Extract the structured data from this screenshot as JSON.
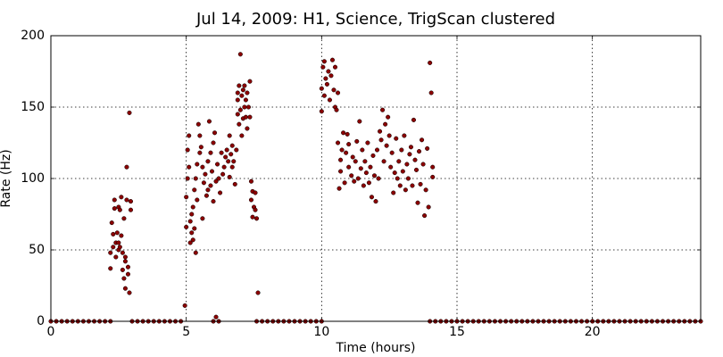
{
  "chart_data": {
    "type": "scatter",
    "title": "Jul 14, 2009: H1, Science, TrigScan clustered",
    "xlabel": "Time (hours)",
    "ylabel": "Rate (Hz)",
    "xlim": [
      0,
      24
    ],
    "ylim": [
      0,
      200
    ],
    "xticks": [
      0,
      5,
      10,
      15,
      20
    ],
    "yticks": [
      0,
      50,
      100,
      150,
      200
    ],
    "grid": true,
    "color": "#8b0000",
    "x": [
      2.2,
      2.2,
      2.25,
      2.3,
      2.3,
      2.35,
      2.35,
      2.4,
      2.4,
      2.45,
      2.5,
      2.5,
      2.55,
      2.6,
      2.6,
      2.65,
      2.65,
      2.7,
      2.7,
      2.75,
      2.75,
      2.8,
      2.8,
      2.85,
      2.85,
      2.9,
      2.9,
      2.95,
      2.95,
      2.75,
      2.55,
      2.5,
      4.95,
      5.0,
      5.0,
      5.05,
      5.05,
      5.1,
      5.1,
      5.15,
      5.15,
      5.2,
      5.2,
      5.25,
      5.25,
      5.3,
      5.3,
      5.35,
      5.35,
      5.4,
      5.4,
      5.45,
      5.5,
      5.5,
      5.55,
      5.6,
      5.6,
      5.65,
      5.7,
      5.75,
      5.8,
      5.8,
      5.85,
      5.9,
      5.9,
      5.95,
      6.0,
      6.0,
      6.05,
      6.1,
      6.1,
      6.15,
      6.2,
      6.25,
      6.3,
      6.35,
      6.4,
      6.45,
      6.5,
      6.55,
      6.6,
      6.6,
      6.65,
      6.7,
      6.7,
      6.75,
      6.8,
      6.85,
      6.9,
      6.9,
      6.9,
      6.95,
      6.95,
      7.0,
      7.0,
      7.05,
      7.05,
      7.1,
      7.1,
      7.15,
      7.15,
      7.2,
      7.2,
      7.25,
      7.25,
      7.3,
      7.35,
      7.35,
      7.4,
      7.4,
      7.45,
      7.45,
      7.5,
      7.55,
      7.55,
      7.6,
      7.65,
      10.0,
      10.0,
      10.05,
      10.1,
      10.1,
      10.15,
      10.2,
      10.25,
      10.3,
      10.35,
      10.4,
      10.45,
      10.5,
      10.5,
      10.55,
      10.6,
      10.6,
      10.65,
      10.7,
      10.7,
      10.75,
      10.8,
      10.85,
      10.9,
      10.95,
      11.0,
      11.0,
      11.1,
      11.15,
      11.2,
      11.25,
      11.3,
      11.35,
      11.4,
      11.45,
      11.5,
      11.55,
      11.6,
      11.65,
      11.7,
      11.75,
      11.8,
      11.85,
      11.9,
      11.95,
      12.0,
      12.05,
      12.1,
      12.15,
      12.2,
      12.25,
      12.3,
      12.35,
      12.4,
      12.45,
      12.5,
      12.55,
      12.6,
      12.65,
      12.7,
      12.75,
      12.8,
      12.85,
      12.9,
      12.95,
      13.0,
      13.05,
      13.1,
      13.15,
      13.2,
      13.25,
      13.3,
      13.35,
      13.4,
      13.45,
      13.5,
      13.55,
      13.6,
      13.65,
      13.7,
      13.75,
      13.8,
      13.85,
      13.9,
      13.95,
      14.0,
      14.05,
      14.1,
      14.1,
      0,
      0.2,
      0.4,
      0.6,
      0.8,
      1,
      1.2,
      1.4,
      1.6,
      1.8,
      2,
      2.2,
      3,
      3.2,
      3.4,
      3.6,
      3.8,
      4,
      4.2,
      4.4,
      4.6,
      4.8,
      6,
      6.2,
      7.6,
      7.8,
      8,
      8.2,
      8.4,
      8.6,
      8.8,
      9,
      9.2,
      9.4,
      9.6,
      9.8,
      10,
      14,
      14.2,
      14.4,
      14.6,
      14.8,
      15,
      15.2,
      15.4,
      15.6,
      15.8,
      16,
      16.2,
      16.4,
      16.6,
      16.8,
      17,
      17.2,
      17.4,
      17.6,
      17.8,
      18,
      18.2,
      18.4,
      18.6,
      18.8,
      19,
      19.2,
      19.4,
      19.6,
      19.8,
      20,
      20.2,
      20.4,
      20.6,
      20.8,
      21,
      21.2,
      21.4,
      21.6,
      21.8,
      22,
      22.2,
      22.4,
      22.6,
      22.8,
      23,
      23.2,
      23.4,
      23.6,
      23.8,
      24
    ],
    "values": [
      37,
      48,
      69,
      52,
      61,
      85,
      79,
      55,
      45,
      62,
      50,
      80,
      78,
      60,
      87,
      48,
      36,
      72,
      30,
      42,
      23,
      108,
      85,
      38,
      33,
      146,
      20,
      78,
      84,
      45,
      52,
      55,
      11,
      66,
      87,
      100,
      120,
      130,
      108,
      70,
      55,
      62,
      75,
      80,
      57,
      65,
      92,
      48,
      100,
      85,
      110,
      138,
      130,
      118,
      122,
      72,
      108,
      97,
      103,
      88,
      92,
      112,
      140,
      95,
      118,
      105,
      84,
      125,
      132,
      98,
      3,
      110,
      100,
      90,
      118,
      103,
      108,
      115,
      120,
      112,
      101,
      130,
      117,
      108,
      123,
      112,
      96,
      120,
      145,
      155,
      160,
      138,
      165,
      187,
      148,
      158,
      130,
      162,
      142,
      150,
      165,
      143,
      155,
      135,
      160,
      150,
      143,
      168,
      98,
      85,
      73,
      91,
      80,
      78,
      90,
      72,
      20,
      147,
      163,
      178,
      182,
      158,
      170,
      166,
      175,
      155,
      172,
      183,
      162,
      178,
      150,
      148,
      160,
      125,
      93,
      113,
      105,
      120,
      132,
      97,
      118,
      131,
      108,
      124,
      102,
      115,
      98,
      112,
      126,
      100,
      140,
      107,
      120,
      95,
      112,
      104,
      125,
      97,
      108,
      87,
      116,
      102,
      84,
      120,
      100,
      133,
      127,
      148,
      112,
      138,
      123,
      143,
      130,
      108,
      118,
      90,
      104,
      128,
      100,
      112,
      95,
      120,
      105,
      130,
      92,
      110,
      100,
      117,
      122,
      95,
      141,
      113,
      106,
      83,
      119,
      96,
      127,
      110,
      74,
      92,
      121,
      80,
      181,
      160,
      108,
      101,
      0,
      0,
      0,
      0,
      0,
      0,
      0,
      0,
      0,
      0,
      0,
      0,
      0,
      0,
      0,
      0,
      0,
      0,
      0,
      0,
      0,
      0,
      0,
      0,
      0,
      0,
      0,
      0,
      0,
      0,
      0,
      0,
      0,
      0,
      0,
      0,
      0,
      0,
      0,
      0,
      0,
      0,
      0,
      0,
      0,
      0,
      0,
      0,
      0,
      0,
      0,
      0,
      0,
      0,
      0,
      0,
      0,
      0,
      0,
      0,
      0,
      0,
      0,
      0,
      0,
      0,
      0,
      0,
      0,
      0,
      0,
      0,
      0,
      0,
      0,
      0,
      0,
      0,
      0,
      0,
      0,
      0,
      0,
      0,
      0,
      0,
      0,
      0
    ]
  }
}
